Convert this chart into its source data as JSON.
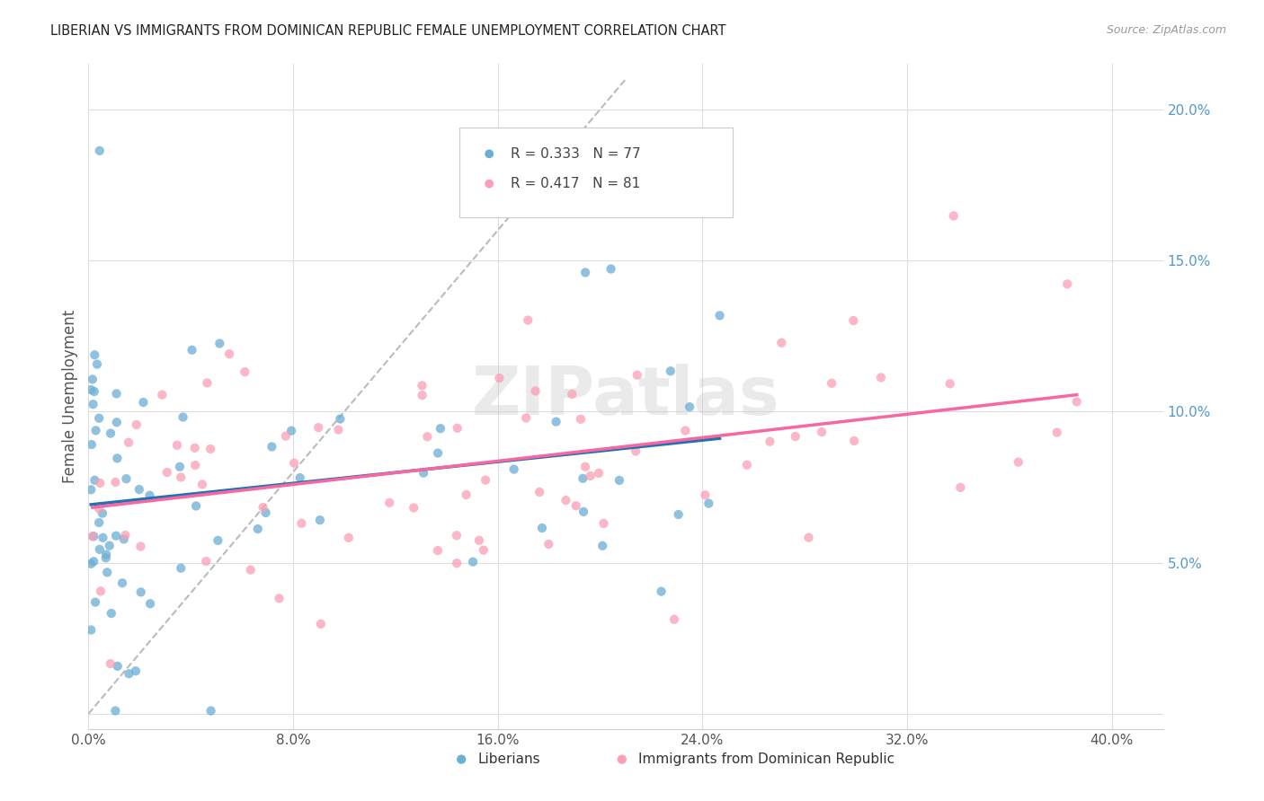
{
  "title": "LIBERIAN VS IMMIGRANTS FROM DOMINICAN REPUBLIC FEMALE UNEMPLOYMENT CORRELATION CHART",
  "source": "Source: ZipAtlas.com",
  "ylabel": "Female Unemployment",
  "yticks": [
    0.0,
    0.05,
    0.1,
    0.15,
    0.2
  ],
  "ytick_labels": [
    "",
    "5.0%",
    "10.0%",
    "15.0%",
    "20.0%"
  ],
  "xticks": [
    0.0,
    0.08,
    0.16,
    0.24,
    0.32,
    0.4
  ],
  "legend_blue_r": "R = 0.333",
  "legend_blue_n": "N = 77",
  "legend_pink_r": "R = 0.417",
  "legend_pink_n": "N = 81",
  "legend_label_blue": "Liberians",
  "legend_label_pink": "Immigrants from Dominican Republic",
  "blue_color": "#6baed6",
  "pink_color": "#fa9fb5",
  "blue_line_color": "#2171b5",
  "pink_line_color": "#f768a1",
  "diag_color": "#bbbbbb",
  "watermark": "ZIPatlas",
  "R_blue": 0.333,
  "N_blue": 77,
  "R_pink": 0.417,
  "N_pink": 81,
  "xlim": [
    0.0,
    0.42
  ],
  "ylim": [
    -0.005,
    0.215
  ],
  "background_color": "#ffffff",
  "grid_color": "#dddddd"
}
